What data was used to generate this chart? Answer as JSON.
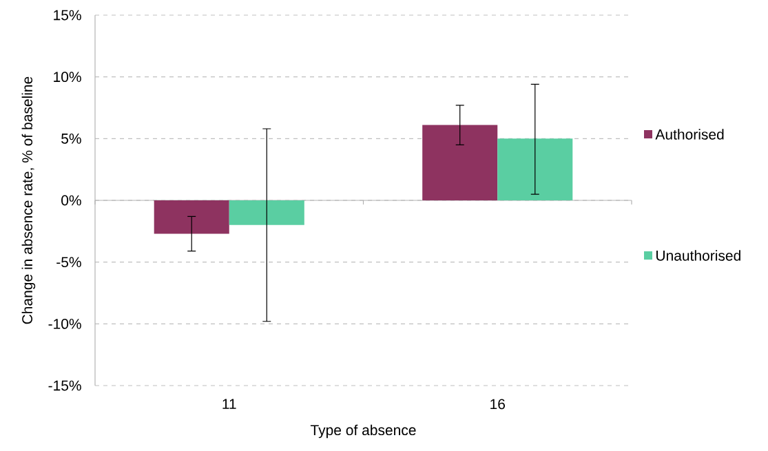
{
  "chart_data": {
    "type": "bar",
    "xlabel": "Type of absence",
    "ylabel": "Change in absence rate, % of baseline",
    "categories": [
      "11",
      "16"
    ],
    "series": [
      {
        "name": "Authorised",
        "color": "#8e3360",
        "values": [
          -2.7,
          6.1
        ],
        "errors": [
          [
            -4.1,
            -1.3
          ],
          [
            4.5,
            7.7
          ]
        ]
      },
      {
        "name": "Unauthorised",
        "color": "#5acea2",
        "values": [
          -2.0,
          5.0
        ],
        "errors": [
          [
            -9.8,
            5.8
          ],
          [
            0.5,
            9.4
          ]
        ]
      }
    ],
    "ylim": [
      -15,
      15
    ],
    "yticks": [
      {
        "value": -15,
        "label": "-15%"
      },
      {
        "value": -10,
        "label": "-10%"
      },
      {
        "value": -5,
        "label": "-5%"
      },
      {
        "value": 0,
        "label": "0%"
      },
      {
        "value": 5,
        "label": "5%"
      },
      {
        "value": 10,
        "label": "10%"
      },
      {
        "value": 15,
        "label": "15%"
      }
    ],
    "grid": "y",
    "legend": "right"
  }
}
